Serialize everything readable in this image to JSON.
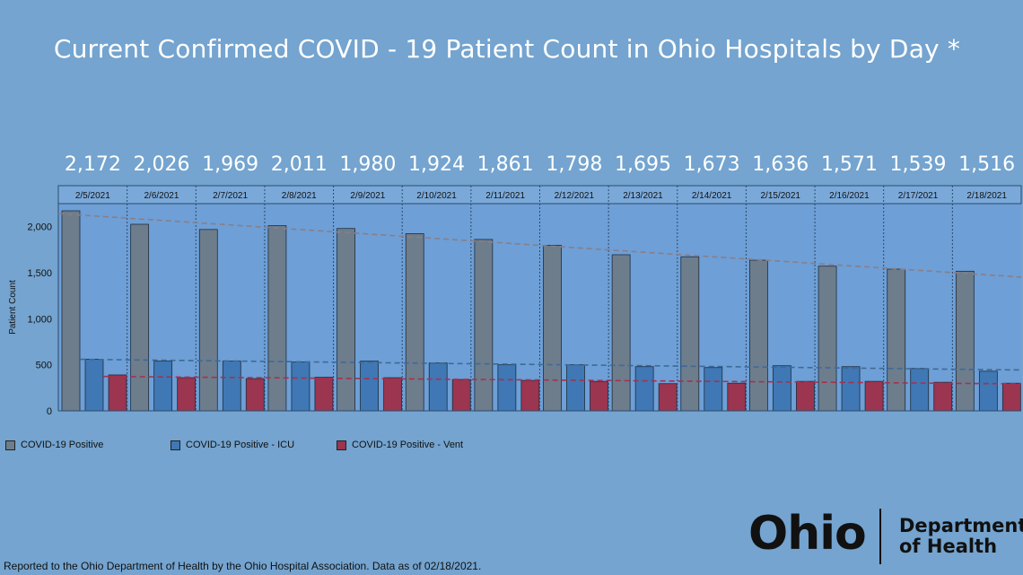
{
  "title": "Current Confirmed COVID - 19 Patient Count in Ohio Hospitals by Day *",
  "footnote": "Reported to the Ohio Department of Health by the Ohio Hospital Association. Data as of 02/18/2021.",
  "logo": {
    "ohio": "Ohio",
    "dept_line1": "Department",
    "dept_line2": "of Health"
  },
  "colors": {
    "background": "#74a4cf",
    "positive": "#6d7d8c",
    "icu": "#3f78b4",
    "vent": "#9b3550",
    "trend_positive": "#8a7e86",
    "trend_icu": "#3e6a98",
    "trend_vent": "#a8304e"
  },
  "chart_data": {
    "type": "bar",
    "title": "Current Confirmed COVID - 19 Patient Count in Ohio Hospitals by Day *",
    "ylabel": "Patient Count",
    "xlabel": "",
    "ylim": [
      0,
      2250
    ],
    "yticks": [
      "0",
      "500",
      "1,000",
      "1,500",
      "2,000"
    ],
    "categories": [
      "2/5/2021",
      "2/6/2021",
      "2/7/2021",
      "2/8/2021",
      "2/9/2021",
      "2/10/2021",
      "2/11/2021",
      "2/12/2021",
      "2/13/2021",
      "2/14/2021",
      "2/15/2021",
      "2/16/2021",
      "2/17/2021",
      "2/18/2021"
    ],
    "top_labels": [
      "2,172",
      "2,026",
      "1,969",
      "2,011",
      "1,980",
      "1,924",
      "1,861",
      "1,798",
      "1,695",
      "1,673",
      "1,636",
      "1,571",
      "1,539",
      "1,516"
    ],
    "series": [
      {
        "name": "COVID-19 Positive",
        "values": [
          2172,
          2026,
          1969,
          2011,
          1980,
          1924,
          1861,
          1798,
          1695,
          1673,
          1636,
          1571,
          1539,
          1516
        ]
      },
      {
        "name": "COVID-19 Positive - ICU",
        "values": [
          560,
          540,
          540,
          530,
          540,
          520,
          500,
          500,
          480,
          470,
          490,
          480,
          460,
          430
        ]
      },
      {
        "name": "COVID-19 Positive - Vent",
        "values": [
          390,
          360,
          350,
          365,
          360,
          340,
          330,
          320,
          295,
          300,
          320,
          320,
          310,
          300
        ]
      }
    ],
    "trendlines": true,
    "legend_position": "bottom-left",
    "grid": false
  }
}
